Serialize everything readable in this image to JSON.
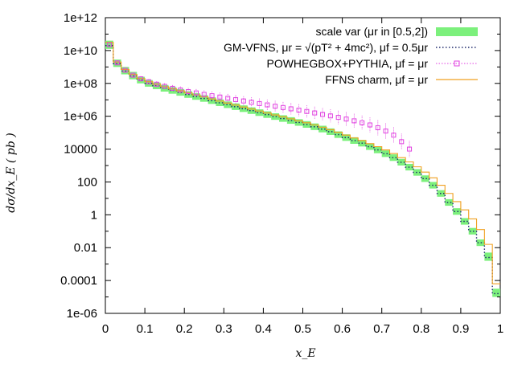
{
  "chart_data": {
    "type": "step",
    "xlabel": "x_E",
    "ylabel": "dσ/dx_E ( pb )",
    "xlim": [
      0,
      1
    ],
    "ylim": [
      1e-06,
      1000000000000.0
    ],
    "yscale": "log",
    "x_ticks": [
      "0",
      "0.1",
      "0.2",
      "0.3",
      "0.4",
      "0.5",
      "0.6",
      "0.7",
      "0.8",
      "0.9",
      "1"
    ],
    "y_ticks": [
      "1e-06",
      "0.0001",
      "0.01",
      "1",
      "100",
      "10000",
      "1e+06",
      "1e+08",
      "1e+10",
      "1e+12"
    ],
    "legend_position": "top-right",
    "legend": [
      {
        "label": "scale var (μr in [0.5,2])",
        "color": "#7CF07C",
        "style": "band"
      },
      {
        "label": "GM-VFNS,  μr = √(pT² + 4mc²), μf = 0.5μr",
        "color": "#1f2a6b",
        "style": "dotted"
      },
      {
        "label": "POWHEGBOX+PYTHIA, μf = μr",
        "color": "#e040e0",
        "style": "points-errorbars"
      },
      {
        "label": "FFNS charm, μf = μr",
        "color": "#f0a020",
        "style": "step"
      }
    ],
    "bin_width": 0.02,
    "x_bin_left": [
      0.0,
      0.02,
      0.04,
      0.06,
      0.08,
      0.1,
      0.12,
      0.14,
      0.16,
      0.18,
      0.2,
      0.22,
      0.24,
      0.26,
      0.28,
      0.3,
      0.32,
      0.34,
      0.36,
      0.38,
      0.4,
      0.42,
      0.44,
      0.46,
      0.48,
      0.5,
      0.52,
      0.54,
      0.56,
      0.58,
      0.6,
      0.62,
      0.64,
      0.66,
      0.68,
      0.7,
      0.72,
      0.74,
      0.76,
      0.78,
      0.8,
      0.82,
      0.84,
      0.86,
      0.88,
      0.9,
      0.92,
      0.94,
      0.96,
      0.98
    ],
    "series": [
      {
        "name": "scale var band lower",
        "log10_values": [
          10.1,
          9.0,
          8.55,
          8.25,
          8.0,
          7.8,
          7.65,
          7.5,
          7.37,
          7.25,
          7.12,
          7.0,
          6.88,
          6.75,
          6.62,
          6.5,
          6.38,
          6.26,
          6.14,
          6.02,
          5.9,
          5.78,
          5.66,
          5.54,
          5.42,
          5.3,
          5.16,
          5.02,
          4.86,
          4.68,
          4.5,
          4.32,
          4.16,
          3.95,
          3.75,
          3.52,
          3.28,
          3.0,
          2.7,
          2.38,
          2.0,
          1.6,
          1.1,
          0.55,
          0.0,
          -0.6,
          -1.2,
          -1.9,
          -2.8,
          -5.0
        ]
      },
      {
        "name": "scale var band upper",
        "log10_values": [
          10.6,
          9.45,
          9.0,
          8.7,
          8.4,
          8.2,
          8.05,
          7.9,
          7.77,
          7.65,
          7.52,
          7.4,
          7.28,
          7.15,
          7.02,
          6.9,
          6.78,
          6.66,
          6.54,
          6.42,
          6.3,
          6.18,
          6.06,
          5.94,
          5.82,
          5.7,
          5.56,
          5.42,
          5.26,
          5.08,
          4.9,
          4.72,
          4.56,
          4.35,
          4.15,
          3.92,
          3.68,
          3.4,
          3.1,
          2.78,
          2.4,
          2.0,
          1.5,
          0.95,
          0.4,
          -0.2,
          -0.8,
          -1.5,
          -2.3,
          -4.5
        ]
      },
      {
        "name": "GM-VFNS",
        "log10_values": [
          10.3,
          9.2,
          8.75,
          8.45,
          8.2,
          8.0,
          7.85,
          7.7,
          7.57,
          7.45,
          7.32,
          7.2,
          7.08,
          6.95,
          6.82,
          6.7,
          6.58,
          6.46,
          6.34,
          6.22,
          6.1,
          5.98,
          5.86,
          5.74,
          5.62,
          5.5,
          5.36,
          5.22,
          5.06,
          4.88,
          4.7,
          4.52,
          4.36,
          4.15,
          3.95,
          3.72,
          3.48,
          3.2,
          2.9,
          2.58,
          2.2,
          1.8,
          1.3,
          0.75,
          0.2,
          -0.4,
          -1.0,
          -1.7,
          -2.6,
          -4.8
        ]
      },
      {
        "name": "FFNS charm",
        "log10_values": [
          10.5,
          9.3,
          8.85,
          8.55,
          8.3,
          8.1,
          7.95,
          7.8,
          7.67,
          7.55,
          7.42,
          7.3,
          7.18,
          7.05,
          6.92,
          6.8,
          6.68,
          6.56,
          6.44,
          6.32,
          6.2,
          6.08,
          5.96,
          5.84,
          5.72,
          5.6,
          5.47,
          5.33,
          5.18,
          5.02,
          4.85,
          4.68,
          4.52,
          4.33,
          4.15,
          3.95,
          3.73,
          3.48,
          3.22,
          2.92,
          2.6,
          2.25,
          1.8,
          1.3,
          0.8,
          0.3,
          -0.25,
          -0.9,
          -1.8,
          -4.2
        ]
      },
      {
        "name": "POWHEGBOX+PYTHIA",
        "x_points": [
          0.01,
          0.03,
          0.05,
          0.07,
          0.09,
          0.11,
          0.13,
          0.15,
          0.17,
          0.19,
          0.21,
          0.23,
          0.25,
          0.27,
          0.29,
          0.31,
          0.33,
          0.35,
          0.37,
          0.39,
          0.41,
          0.43,
          0.45,
          0.47,
          0.49,
          0.51,
          0.53,
          0.55,
          0.57,
          0.59,
          0.61,
          0.63,
          0.65,
          0.67,
          0.69,
          0.71,
          0.73,
          0.75,
          0.77
        ],
        "log10_values": [
          10.35,
          9.25,
          8.8,
          8.5,
          8.28,
          8.1,
          7.95,
          7.82,
          7.7,
          7.6,
          7.5,
          7.42,
          7.33,
          7.25,
          7.17,
          7.09,
          7.01,
          6.93,
          6.85,
          6.77,
          6.69,
          6.61,
          6.53,
          6.45,
          6.37,
          6.29,
          6.2,
          6.11,
          6.02,
          5.93,
          5.83,
          5.72,
          5.6,
          5.47,
          5.3,
          5.1,
          4.85,
          4.45,
          4.0
        ]
      }
    ]
  }
}
